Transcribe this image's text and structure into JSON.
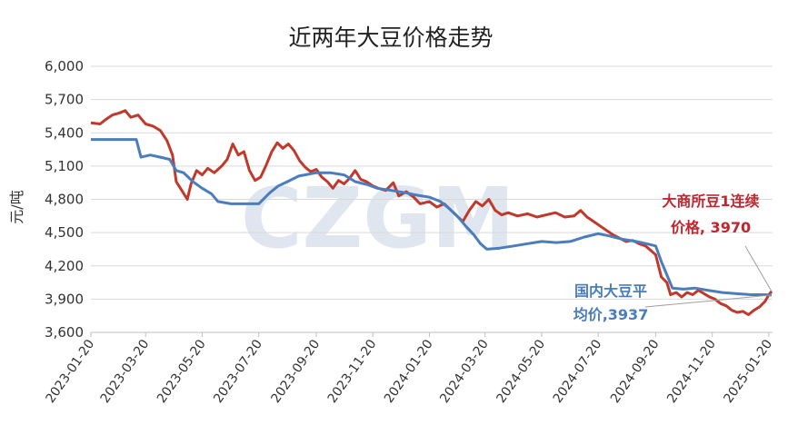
{
  "chart_data": {
    "type": "line",
    "title": "近两年大豆价格走势",
    "ylabel": "元/吨",
    "ylim": [
      3600,
      6000
    ],
    "yticks": [
      "6,000",
      "5,700",
      "5,400",
      "5,100",
      "4,800",
      "4,500",
      "4,200",
      "3,900",
      "3,600"
    ],
    "ytick_values": [
      6000,
      5700,
      5400,
      5100,
      4800,
      4500,
      4200,
      3900,
      3600
    ],
    "xlim": [
      "2023-01-20",
      "2025-01-24"
    ],
    "xticks": [
      "2023-01-20",
      "2023-03-20",
      "2023-05-20",
      "2023-07-20",
      "2023-09-20",
      "2023-11-20",
      "2024-01-20",
      "2024-03-20",
      "2024-05-20",
      "2024-07-20",
      "2024-09-20",
      "2024-11-20",
      "2025-01-20"
    ],
    "grid": "horizontal",
    "watermark": "CZGM",
    "colors": {
      "dalian": "#c0392b",
      "domestic": "#4a7dbd"
    },
    "series": [
      {
        "key": "dalian",
        "values": [
          [
            "2023-01-20",
            5490
          ],
          [
            "2023-01-30",
            5480
          ],
          [
            "2023-02-05",
            5520
          ],
          [
            "2023-02-12",
            5560
          ],
          [
            "2023-02-20",
            5580
          ],
          [
            "2023-02-26",
            5600
          ],
          [
            "2023-03-04",
            5540
          ],
          [
            "2023-03-12",
            5560
          ],
          [
            "2023-03-20",
            5480
          ],
          [
            "2023-03-28",
            5460
          ],
          [
            "2023-04-05",
            5420
          ],
          [
            "2023-04-12",
            5330
          ],
          [
            "2023-04-18",
            5200
          ],
          [
            "2023-04-22",
            4960
          ],
          [
            "2023-04-28",
            4880
          ],
          [
            "2023-05-04",
            4800
          ],
          [
            "2023-05-08",
            4940
          ],
          [
            "2023-05-14",
            5060
          ],
          [
            "2023-05-20",
            5020
          ],
          [
            "2023-05-26",
            5080
          ],
          [
            "2023-06-02",
            5040
          ],
          [
            "2023-06-10",
            5100
          ],
          [
            "2023-06-16",
            5160
          ],
          [
            "2023-06-22",
            5300
          ],
          [
            "2023-06-28",
            5200
          ],
          [
            "2023-07-04",
            5230
          ],
          [
            "2023-07-10",
            5060
          ],
          [
            "2023-07-16",
            4970
          ],
          [
            "2023-07-22",
            5000
          ],
          [
            "2023-07-28",
            5110
          ],
          [
            "2023-08-03",
            5230
          ],
          [
            "2023-08-09",
            5310
          ],
          [
            "2023-08-15",
            5260
          ],
          [
            "2023-08-21",
            5300
          ],
          [
            "2023-08-27",
            5240
          ],
          [
            "2023-09-02",
            5150
          ],
          [
            "2023-09-08",
            5090
          ],
          [
            "2023-09-14",
            5050
          ],
          [
            "2023-09-20",
            5070
          ],
          [
            "2023-09-26",
            5000
          ],
          [
            "2023-10-02",
            4960
          ],
          [
            "2023-10-08",
            4900
          ],
          [
            "2023-10-14",
            4970
          ],
          [
            "2023-10-20",
            4940
          ],
          [
            "2023-10-26",
            4990
          ],
          [
            "2023-11-01",
            5060
          ],
          [
            "2023-11-07",
            4980
          ],
          [
            "2023-11-13",
            4960
          ],
          [
            "2023-11-20",
            4920
          ],
          [
            "2023-11-26",
            4900
          ],
          [
            "2023-12-04",
            4880
          ],
          [
            "2023-12-12",
            4950
          ],
          [
            "2023-12-18",
            4830
          ],
          [
            "2023-12-26",
            4870
          ],
          [
            "2024-01-03",
            4820
          ],
          [
            "2024-01-10",
            4760
          ],
          [
            "2024-01-20",
            4780
          ],
          [
            "2024-01-28",
            4730
          ],
          [
            "2024-02-05",
            4760
          ],
          [
            "2024-02-15",
            4680
          ],
          [
            "2024-02-25",
            4600
          ],
          [
            "2024-03-03",
            4700
          ],
          [
            "2024-03-10",
            4780
          ],
          [
            "2024-03-17",
            4740
          ],
          [
            "2024-03-24",
            4800
          ],
          [
            "2024-03-31",
            4700
          ],
          [
            "2024-04-07",
            4660
          ],
          [
            "2024-04-14",
            4680
          ],
          [
            "2024-04-24",
            4650
          ],
          [
            "2024-05-05",
            4670
          ],
          [
            "2024-05-15",
            4640
          ],
          [
            "2024-05-25",
            4660
          ],
          [
            "2024-06-04",
            4680
          ],
          [
            "2024-06-14",
            4640
          ],
          [
            "2024-06-24",
            4650
          ],
          [
            "2024-07-01",
            4700
          ],
          [
            "2024-07-08",
            4640
          ],
          [
            "2024-07-15",
            4600
          ],
          [
            "2024-07-22",
            4560
          ],
          [
            "2024-07-29",
            4520
          ],
          [
            "2024-08-05",
            4480
          ],
          [
            "2024-08-12",
            4450
          ],
          [
            "2024-08-19",
            4420
          ],
          [
            "2024-08-26",
            4430
          ],
          [
            "2024-09-02",
            4400
          ],
          [
            "2024-09-09",
            4380
          ],
          [
            "2024-09-16",
            4330
          ],
          [
            "2024-09-20",
            4300
          ],
          [
            "2024-09-26",
            4100
          ],
          [
            "2024-10-02",
            4050
          ],
          [
            "2024-10-06",
            3940
          ],
          [
            "2024-10-12",
            3960
          ],
          [
            "2024-10-18",
            3920
          ],
          [
            "2024-10-24",
            3960
          ],
          [
            "2024-10-30",
            3940
          ],
          [
            "2024-11-05",
            3980
          ],
          [
            "2024-11-11",
            3950
          ],
          [
            "2024-11-17",
            3920
          ],
          [
            "2024-11-23",
            3900
          ],
          [
            "2024-11-29",
            3860
          ],
          [
            "2024-12-05",
            3840
          ],
          [
            "2024-12-11",
            3800
          ],
          [
            "2024-12-17",
            3780
          ],
          [
            "2024-12-23",
            3790
          ],
          [
            "2024-12-29",
            3760
          ],
          [
            "2025-01-04",
            3800
          ],
          [
            "2025-01-10",
            3830
          ],
          [
            "2025-01-16",
            3880
          ],
          [
            "2025-01-20",
            3940
          ],
          [
            "2025-01-23",
            3970
          ]
        ]
      },
      {
        "key": "domestic",
        "values": [
          [
            "2023-01-20",
            5340
          ],
          [
            "2023-02-10",
            5340
          ],
          [
            "2023-03-01",
            5340
          ],
          [
            "2023-03-10",
            5340
          ],
          [
            "2023-03-15",
            5180
          ],
          [
            "2023-03-25",
            5200
          ],
          [
            "2023-04-05",
            5180
          ],
          [
            "2023-04-15",
            5160
          ],
          [
            "2023-04-22",
            5060
          ],
          [
            "2023-04-30",
            5040
          ],
          [
            "2023-05-10",
            4960
          ],
          [
            "2023-05-20",
            4900
          ],
          [
            "2023-05-30",
            4850
          ],
          [
            "2023-06-06",
            4780
          ],
          [
            "2023-06-20",
            4760
          ],
          [
            "2023-07-05",
            4760
          ],
          [
            "2023-07-20",
            4760
          ],
          [
            "2023-08-01",
            4860
          ],
          [
            "2023-08-10",
            4920
          ],
          [
            "2023-08-20",
            4960
          ],
          [
            "2023-09-01",
            5010
          ],
          [
            "2023-09-20",
            5040
          ],
          [
            "2023-10-05",
            5040
          ],
          [
            "2023-10-20",
            5020
          ],
          [
            "2023-11-01",
            4960
          ],
          [
            "2023-11-15",
            4930
          ],
          [
            "2023-11-25",
            4900
          ],
          [
            "2023-12-10",
            4880
          ],
          [
            "2023-12-25",
            4860
          ],
          [
            "2024-01-05",
            4840
          ],
          [
            "2024-01-20",
            4820
          ],
          [
            "2024-02-01",
            4780
          ],
          [
            "2024-02-10",
            4720
          ],
          [
            "2024-02-20",
            4640
          ],
          [
            "2024-02-28",
            4560
          ],
          [
            "2024-03-08",
            4480
          ],
          [
            "2024-03-15",
            4400
          ],
          [
            "2024-03-22",
            4350
          ],
          [
            "2024-04-05",
            4360
          ],
          [
            "2024-04-20",
            4380
          ],
          [
            "2024-05-05",
            4400
          ],
          [
            "2024-05-20",
            4420
          ],
          [
            "2024-06-05",
            4410
          ],
          [
            "2024-06-20",
            4420
          ],
          [
            "2024-07-05",
            4460
          ],
          [
            "2024-07-20",
            4490
          ],
          [
            "2024-08-01",
            4470
          ],
          [
            "2024-08-15",
            4440
          ],
          [
            "2024-08-30",
            4420
          ],
          [
            "2024-09-10",
            4400
          ],
          [
            "2024-09-20",
            4380
          ],
          [
            "2024-09-26",
            4240
          ],
          [
            "2024-10-02",
            4120
          ],
          [
            "2024-10-08",
            4000
          ],
          [
            "2024-10-20",
            3990
          ],
          [
            "2024-11-01",
            4000
          ],
          [
            "2024-11-15",
            3980
          ],
          [
            "2024-12-01",
            3960
          ],
          [
            "2024-12-15",
            3950
          ],
          [
            "2025-01-01",
            3940
          ],
          [
            "2025-01-15",
            3940
          ],
          [
            "2025-01-23",
            3937
          ]
        ]
      }
    ],
    "annotations": [
      {
        "key": "dalian",
        "lines": [
          "大商所豆1连续",
          "价格, 3970"
        ]
      },
      {
        "key": "domestic",
        "lines": [
          "国内大豆平",
          "均价,3937"
        ]
      }
    ]
  }
}
